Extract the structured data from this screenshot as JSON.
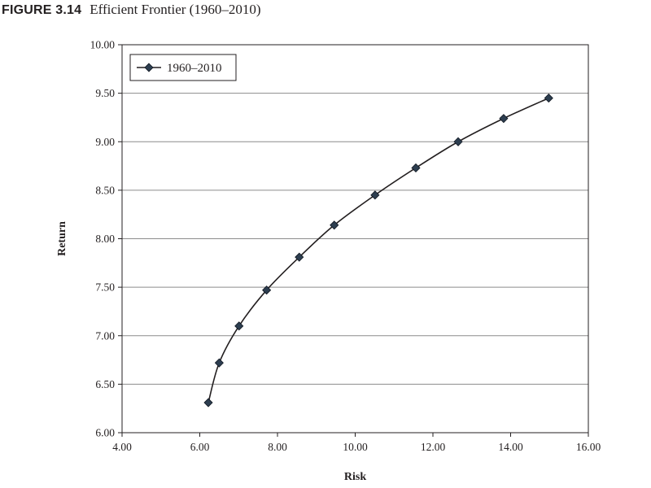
{
  "figure": {
    "label": "FIGURE 3.14",
    "title": "Efficient Frontier (1960–2010)"
  },
  "chart_data": {
    "type": "line",
    "title": "Efficient Frontier (1960–2010)",
    "xlabel": "Risk",
    "ylabel": "Return",
    "xlim": [
      4.0,
      16.0
    ],
    "ylim": [
      6.0,
      10.0
    ],
    "xticks": [
      4.0,
      6.0,
      8.0,
      10.0,
      12.0,
      14.0,
      16.0
    ],
    "yticks": [
      6.0,
      6.5,
      7.0,
      7.5,
      8.0,
      8.5,
      9.0,
      9.5,
      10.0
    ],
    "tick_format": "2 decimals",
    "grid": "horizontal",
    "legend_position": "top-left",
    "marker": "diamond",
    "line_color": "#231f20",
    "marker_color": "#2d3e50",
    "series": [
      {
        "name": "1960–2010",
        "x": [
          6.22,
          6.5,
          7.01,
          7.72,
          8.56,
          9.46,
          10.51,
          11.56,
          12.65,
          13.82,
          14.98
        ],
        "y": [
          6.31,
          6.72,
          7.1,
          7.47,
          7.81,
          8.14,
          8.45,
          8.73,
          9.0,
          9.24,
          9.45
        ]
      }
    ]
  }
}
